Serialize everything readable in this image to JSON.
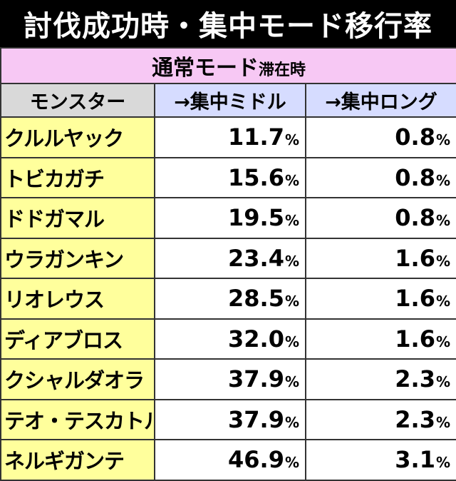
{
  "title": "討伐成功時・集中モード移行率",
  "mode": {
    "label": "通常モード",
    "suffix": "滞在時"
  },
  "headers": {
    "monster": "モンスター",
    "mid": "→集中ミドル",
    "long": "→集中ロング"
  },
  "percent_sign": "%",
  "rows": [
    {
      "name": "クルルヤック",
      "mid": "11.7",
      "long": "0.8"
    },
    {
      "name": "トビカガチ",
      "mid": "15.6",
      "long": "0.8"
    },
    {
      "name": "ドドガマル",
      "mid": "19.5",
      "long": "0.8"
    },
    {
      "name": "ウラガンキン",
      "mid": "23.4",
      "long": "1.6"
    },
    {
      "name": "リオレウス",
      "mid": "28.5",
      "long": "1.6"
    },
    {
      "name": "ディアブロス",
      "mid": "32.0",
      "long": "1.6"
    },
    {
      "name": "クシャルダオラ",
      "mid": "37.9",
      "long": "2.3"
    },
    {
      "name": "テオ・テスカトル",
      "mid": "37.9",
      "long": "2.3"
    },
    {
      "name": "ネルギガンテ",
      "mid": "46.9",
      "long": "3.1"
    }
  ]
}
